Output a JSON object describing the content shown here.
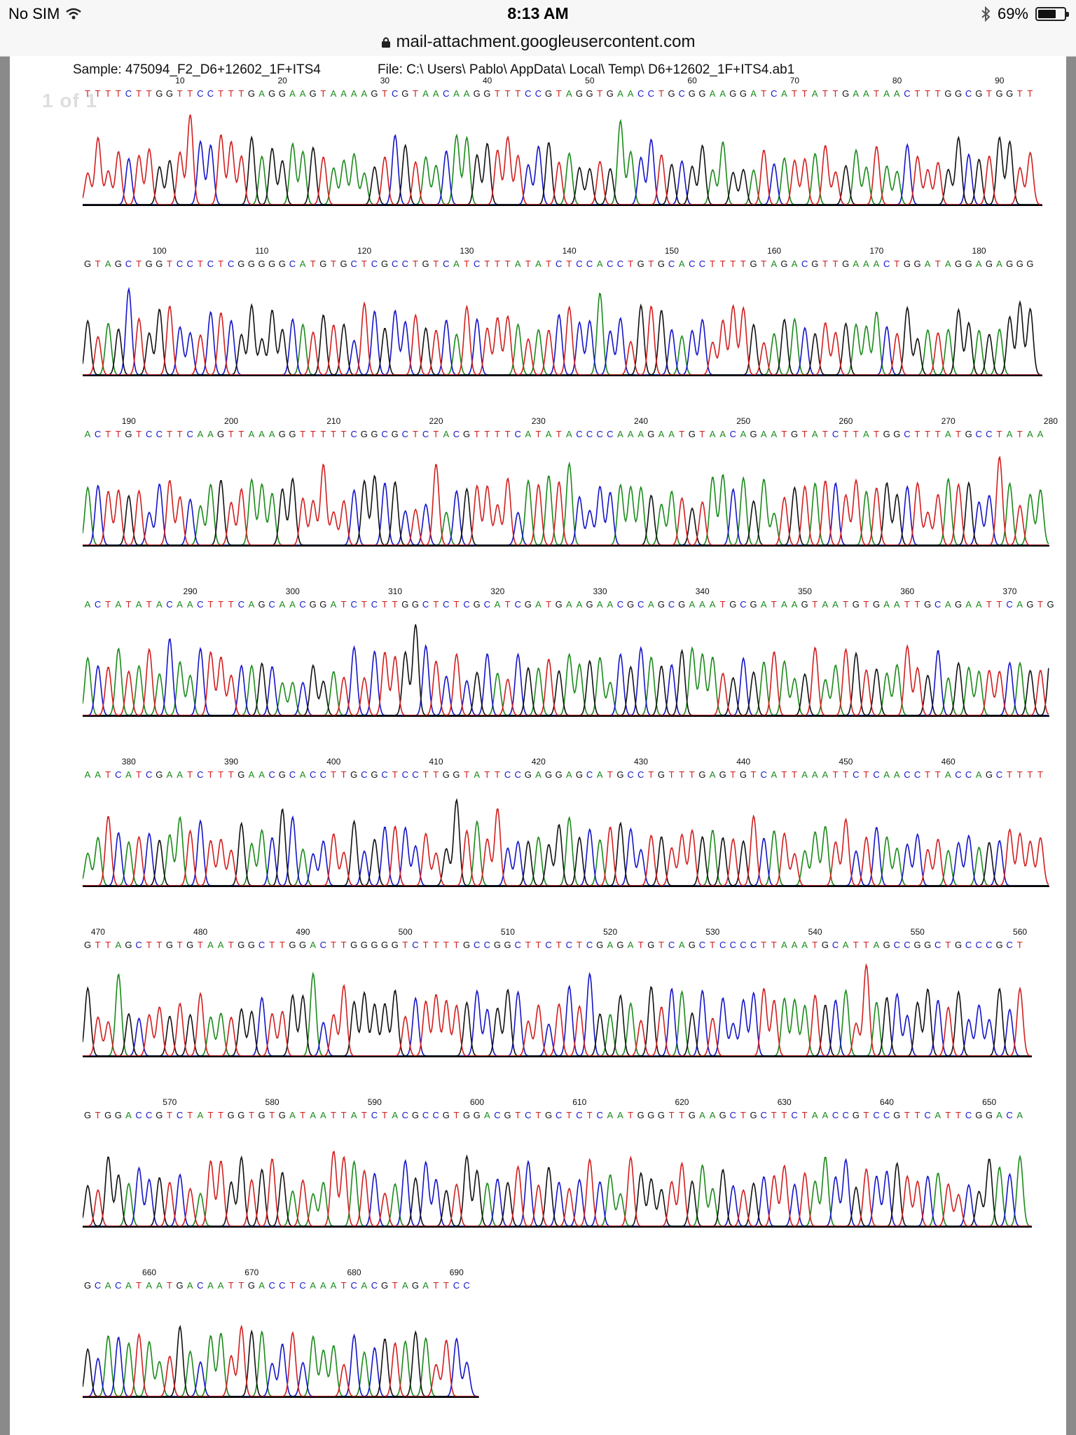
{
  "status_bar": {
    "carrier": "No SIM",
    "time": "8:13 AM",
    "battery_pct": "69%",
    "battery_level": 0.69,
    "icons": [
      "wifi-icon",
      "bluetooth-icon",
      "battery-icon"
    ]
  },
  "url_bar": {
    "domain": "mail-attachment.googleusercontent.com",
    "icon": "lock-icon"
  },
  "document": {
    "page_counter": "1 of 1",
    "sample_label": "Sample: 475094_F2_D6+12602_1F+ITS4",
    "file_label": "File: C:\\ Users\\ Pablo\\ AppData\\ Local\\ Temp\\ D6+12602_1F+ITS4.ab1"
  },
  "base_colors": {
    "A": "#1a8a1a",
    "C": "#1414c8",
    "G": "#111111",
    "T": "#d21e1e"
  },
  "chromatogram_rows": [
    {
      "start": 1,
      "ticks": [
        "10",
        "20",
        "30",
        "40",
        "50",
        "60",
        "70",
        "80",
        "90"
      ],
      "sequence": "TTTTCTTGGTTCCTTTGAGGAAGTAAAAGTCGTAACAAGGTTTCCGTAGGTGAACCTGCGGAAGGATCATTATTGAATAACTTTGGCGTGGTT"
    },
    {
      "start": 93,
      "ticks": [
        "100",
        "110",
        "120",
        "130",
        "140",
        "150",
        "160",
        "170",
        "180"
      ],
      "sequence": "GTAGCTGGTCCTCTCGGGGGCATGTGCTCGCCTGTCATCTTTATATCTCCACCTGTGCACCTTTTGTAGACGTTGAAACTGGATAGGAGAGGG"
    },
    {
      "start": 186,
      "ticks": [
        "190",
        "200",
        "210",
        "220",
        "230",
        "240",
        "250",
        "260",
        "270",
        "280"
      ],
      "sequence": "ACTTGTCCTTCAAGTTAAAGGTTTTTCGGCGCTCTACGTTTTCATATACCCCAAAGAATGTAACAGAATGTATCTTATGGCTTTATGCCTATAA"
    },
    {
      "start": 280,
      "ticks": [
        "290",
        "300",
        "310",
        "320",
        "330",
        "340",
        "350",
        "360",
        "370"
      ],
      "sequence": "ACTATATACAACTTTCAGCAACGGATCTCTTGGCTCTCGCATCGATGAAGAACGCAGCGAAATGCGATAAGTAATGTGAATTGCAGAATTCAGTG"
    },
    {
      "start": 376,
      "ticks": [
        "380",
        "390",
        "400",
        "410",
        "420",
        "430",
        "440",
        "450",
        "460"
      ],
      "sequence": "AATCATCGAATCTTTGAACGCACCTTGCGCTCCTTGGTATTCCGAGGAGCATGCCTGTTTGAGTGTCATTAAATTCTCAACCTTACCAGCTTTT"
    },
    {
      "start": 469,
      "ticks": [
        "470",
        "480",
        "490",
        "500",
        "510",
        "520",
        "530",
        "540",
        "550",
        "560"
      ],
      "sequence": "GTTAGCTTGTGTAATGGCTTGGACTTGGGGGTCTTTTGCCGGCTTCTCTCGAGATGTCAGCTCCCCTTAAATGCATTAGCCGGCTGCCCGCT"
    },
    {
      "start": 562,
      "ticks": [
        "570",
        "580",
        "590",
        "600",
        "610",
        "620",
        "630",
        "640",
        "650"
      ],
      "sequence": "GTGGACCGTCTATTGGTGTGATAATTATCTACGCCGTGGACGTCTGCTCTCAATGGGTTGAAGCTGCTTCTAACCGTCCGTTCATTCGGACA"
    },
    {
      "start": 654,
      "ticks": [
        "660",
        "670",
        "680",
        "690"
      ],
      "sequence": "GCACATAATGACAATTGACCTCAAATCACGTAGATTCC"
    }
  ]
}
